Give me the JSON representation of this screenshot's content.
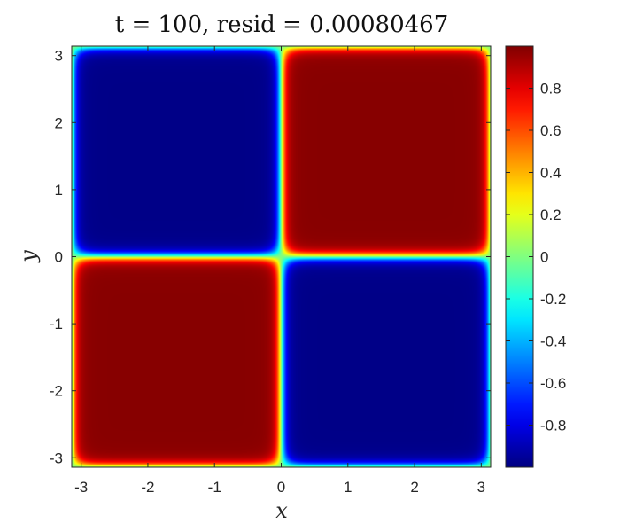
{
  "chart_data": {
    "type": "heatmap",
    "title": "t = 100,  resid = 0.00080467",
    "xlabel": "x",
    "ylabel": "y",
    "xlim": [
      -3.14159,
      3.14159
    ],
    "ylim": [
      -3.14159,
      3.14159
    ],
    "x_ticks": [
      -3,
      -2,
      -1,
      0,
      1,
      2,
      3
    ],
    "x_tick_labels": [
      "-3",
      "-2",
      "-1",
      "0",
      "1",
      "2",
      "3"
    ],
    "y_ticks": [
      -3,
      -2,
      -1,
      0,
      1,
      2,
      3
    ],
    "y_tick_labels": [
      "-3",
      "-2",
      "-1",
      "0",
      "1",
      "2",
      "3"
    ],
    "colormap": "jet",
    "clim": [
      -1,
      1
    ],
    "colorbar_ticks": [
      -0.8,
      -0.6,
      -0.4,
      -0.2,
      0,
      0.2,
      0.4,
      0.6,
      0.8
    ],
    "colorbar_tick_labels": [
      "-0.8",
      "-0.6",
      "-0.4",
      "-0.2",
      "0",
      "0.2",
      "0.4",
      "0.6",
      "0.8"
    ],
    "grid": false,
    "field": {
      "description_of_values": "u(x,y) = -1 in lower-right and upper-left quadrant regions, +1 in upper-right and lower-left, periodic, sharp tanh interfaces",
      "regions": [
        {
          "quadrant": "upper-right",
          "value": 1
        },
        {
          "quadrant": "upper-left",
          "value": -1
        },
        {
          "quadrant": "lower-left",
          "value": 1
        },
        {
          "quadrant": "lower-right",
          "value": -1
        }
      ]
    }
  }
}
